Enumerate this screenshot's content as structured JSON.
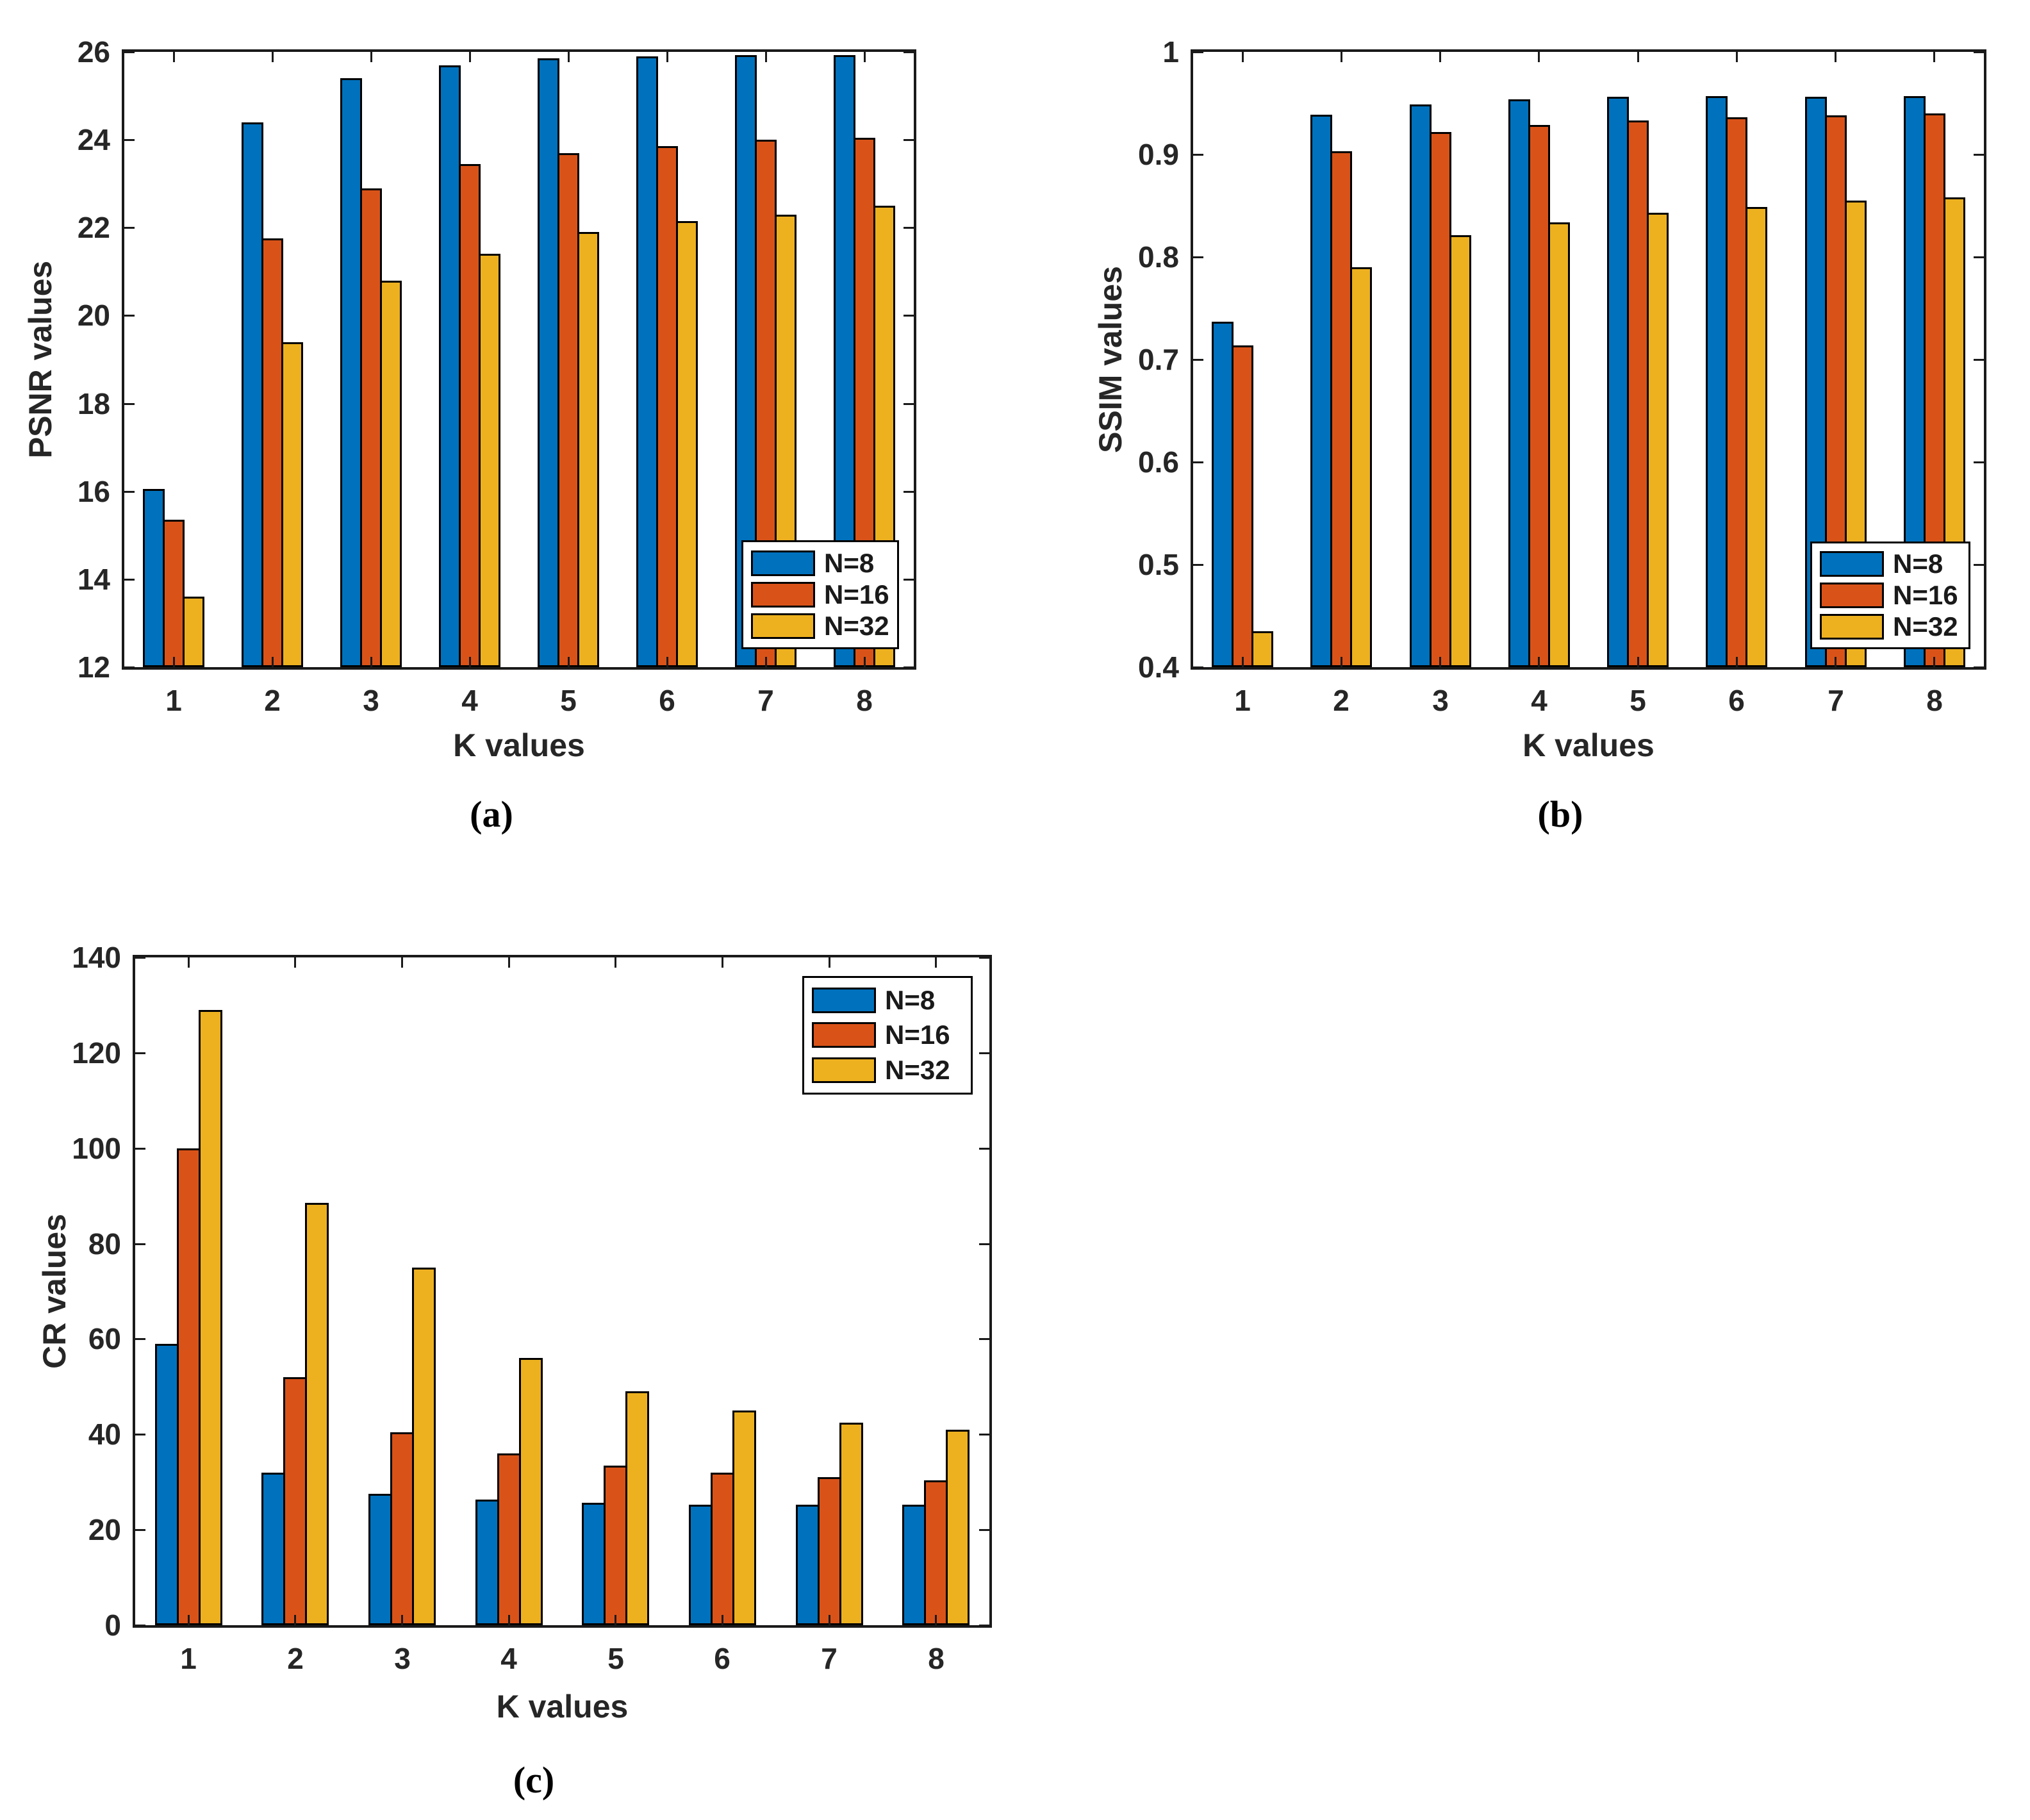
{
  "figure": {
    "background": "#ffffff",
    "axis_color": "#1a1a1a",
    "text_color": "#262626",
    "bar_edge_color": "#000000",
    "series_colors": {
      "N=8": "#0072BD",
      "N=16": "#D95319",
      "N=32": "#EDB120"
    }
  },
  "chart_data": [
    {
      "id": "a",
      "type": "bar",
      "caption": "(a)",
      "xlabel": "K values",
      "ylabel": "PSNR values",
      "ylim": [
        12,
        26
      ],
      "grid": false,
      "legend_position": "bottom-right",
      "yticks": [
        {
          "value": 12,
          "label": "12"
        },
        {
          "value": 14,
          "label": "14"
        },
        {
          "value": 16,
          "label": "16"
        },
        {
          "value": 18,
          "label": "18"
        },
        {
          "value": 20,
          "label": "20"
        },
        {
          "value": 22,
          "label": "22"
        },
        {
          "value": 24,
          "label": "24"
        },
        {
          "value": 26,
          "label": "26"
        }
      ],
      "categories": [
        "1",
        "2",
        "3",
        "4",
        "5",
        "6",
        "7",
        "8"
      ],
      "series": [
        {
          "name": "N=8",
          "color": "#0072BD",
          "values": [
            16.05,
            24.4,
            25.4,
            25.7,
            25.85,
            25.9,
            25.92,
            25.93
          ]
        },
        {
          "name": "N=16",
          "color": "#D95319",
          "values": [
            15.35,
            21.75,
            22.9,
            23.45,
            23.7,
            23.85,
            24.0,
            24.05
          ]
        },
        {
          "name": "N=32",
          "color": "#EDB120",
          "values": [
            13.6,
            19.4,
            20.8,
            21.4,
            21.9,
            22.15,
            22.3,
            22.5
          ]
        }
      ]
    },
    {
      "id": "b",
      "type": "bar",
      "caption": "(b)",
      "xlabel": "K values",
      "ylabel": "SSIM values",
      "ylim": [
        0.4,
        1.0
      ],
      "grid": false,
      "legend_position": "bottom-right",
      "yticks": [
        {
          "value": 0.4,
          "label": "0.4"
        },
        {
          "value": 0.5,
          "label": "0.5"
        },
        {
          "value": 0.6,
          "label": "0.6"
        },
        {
          "value": 0.7,
          "label": "0.7"
        },
        {
          "value": 0.8,
          "label": "0.8"
        },
        {
          "value": 0.9,
          "label": "0.9"
        },
        {
          "value": 1.0,
          "label": "1"
        }
      ],
      "categories": [
        "1",
        "2",
        "3",
        "4",
        "5",
        "6",
        "7",
        "8"
      ],
      "series": [
        {
          "name": "N=8",
          "color": "#0072BD",
          "values": [
            0.737,
            0.939,
            0.949,
            0.954,
            0.956,
            0.957,
            0.956,
            0.957
          ]
        },
        {
          "name": "N=16",
          "color": "#D95319",
          "values": [
            0.714,
            0.903,
            0.922,
            0.929,
            0.933,
            0.936,
            0.938,
            0.94
          ]
        },
        {
          "name": "N=32",
          "color": "#EDB120",
          "values": [
            0.435,
            0.79,
            0.821,
            0.834,
            0.843,
            0.849,
            0.855,
            0.858
          ]
        }
      ]
    },
    {
      "id": "c",
      "type": "bar",
      "caption": "(c)",
      "xlabel": "K values",
      "ylabel": "CR values",
      "ylim": [
        0,
        140
      ],
      "grid": false,
      "legend_position": "top-right",
      "yticks": [
        {
          "value": 0,
          "label": "0"
        },
        {
          "value": 20,
          "label": "20"
        },
        {
          "value": 40,
          "label": "40"
        },
        {
          "value": 60,
          "label": "60"
        },
        {
          "value": 80,
          "label": "80"
        },
        {
          "value": 100,
          "label": "100"
        },
        {
          "value": 120,
          "label": "120"
        },
        {
          "value": 140,
          "label": "140"
        }
      ],
      "categories": [
        "1",
        "2",
        "3",
        "4",
        "5",
        "6",
        "7",
        "8"
      ],
      "series": [
        {
          "name": "N=8",
          "color": "#0072BD",
          "values": [
            59,
            32,
            27.5,
            26.3,
            25.6,
            25.3,
            25.3,
            25.2
          ]
        },
        {
          "name": "N=16",
          "color": "#D95319",
          "values": [
            100,
            52,
            40.5,
            36,
            33.5,
            32,
            31,
            30.3
          ]
        },
        {
          "name": "N=32",
          "color": "#EDB120",
          "values": [
            129,
            88.5,
            75,
            56,
            49,
            45,
            42.5,
            41
          ]
        }
      ]
    }
  ]
}
